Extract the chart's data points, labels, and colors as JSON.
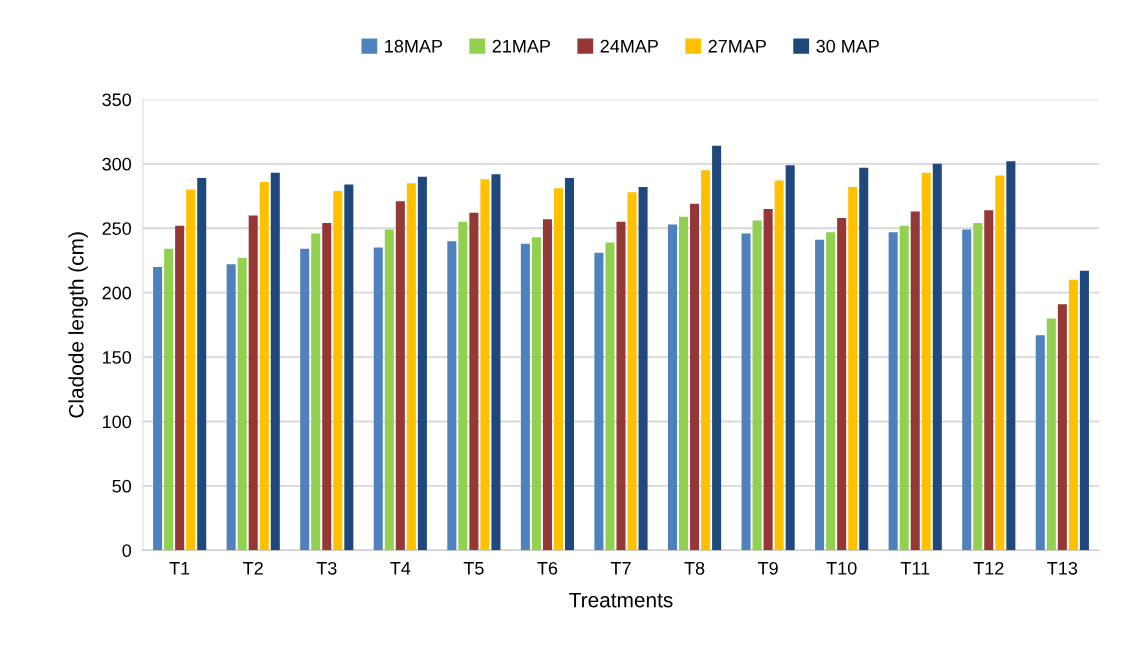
{
  "chart_data": {
    "type": "bar",
    "xlabel": "Treatments",
    "ylabel": "Cladode length (cm)",
    "categories": [
      "T1",
      "T2",
      "T3",
      "T4",
      "T5",
      "T6",
      "T7",
      "T8",
      "T9",
      "T10",
      "T11",
      "T12",
      "T13"
    ],
    "series": [
      {
        "name": "18MAP",
        "color": "#4f81bd",
        "values": [
          220,
          222,
          234,
          235,
          240,
          238,
          231,
          253,
          246,
          241,
          247,
          249,
          167
        ]
      },
      {
        "name": "21MAP",
        "color": "#92d050",
        "values": [
          234,
          227,
          246,
          249,
          255,
          243,
          239,
          259,
          256,
          247,
          252,
          254,
          180
        ]
      },
      {
        "name": "24MAP",
        "color": "#953735",
        "values": [
          252,
          260,
          254,
          271,
          262,
          257,
          255,
          269,
          265,
          258,
          263,
          264,
          191
        ]
      },
      {
        "name": "27MAP",
        "color": "#ffc000",
        "values": [
          280,
          286,
          279,
          285,
          288,
          281,
          278,
          295,
          287,
          282,
          293,
          291,
          210
        ]
      },
      {
        "name": "30 MAP",
        "color": "#1f497d",
        "values": [
          289,
          293,
          284,
          290,
          292,
          289,
          282,
          314,
          299,
          297,
          300,
          302,
          217
        ]
      }
    ],
    "ylim": [
      0,
      350
    ],
    "yticks": [
      0,
      50,
      100,
      150,
      200,
      250,
      300,
      350
    ],
    "grid": "y",
    "legend": "top"
  }
}
